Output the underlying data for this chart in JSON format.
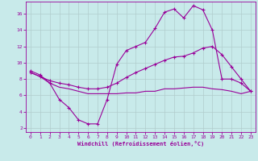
{
  "xlabel": "Windchill (Refroidissement éolien,°C)",
  "background_color": "#c8eaea",
  "grid_color": "#b0cccc",
  "line_color": "#990099",
  "xlim": [
    -0.5,
    23.5
  ],
  "ylim": [
    1.5,
    17.5
  ],
  "xticks": [
    0,
    1,
    2,
    3,
    4,
    5,
    6,
    7,
    8,
    9,
    10,
    11,
    12,
    13,
    14,
    15,
    16,
    17,
    18,
    19,
    20,
    21,
    22,
    23
  ],
  "yticks": [
    2,
    4,
    6,
    8,
    10,
    12,
    14,
    16
  ],
  "line1_x": [
    0,
    1,
    2,
    3,
    4,
    5,
    6,
    7,
    8,
    9,
    10,
    11,
    12,
    13,
    14,
    15,
    16,
    17,
    18,
    19,
    20,
    21,
    22,
    23
  ],
  "line1_y": [
    9.0,
    8.5,
    7.5,
    5.5,
    4.5,
    3.0,
    2.5,
    2.5,
    5.5,
    9.8,
    11.5,
    12.0,
    12.5,
    14.2,
    16.2,
    16.6,
    15.5,
    17.0,
    16.5,
    14.0,
    8.0,
    8.0,
    7.5,
    6.5
  ],
  "line2_x": [
    0,
    1,
    2,
    3,
    4,
    5,
    6,
    7,
    8,
    9,
    10,
    11,
    12,
    13,
    14,
    15,
    16,
    17,
    18,
    19,
    20,
    21,
    22,
    23
  ],
  "line2_y": [
    8.8,
    8.3,
    7.8,
    7.5,
    7.3,
    7.0,
    6.8,
    6.8,
    7.0,
    7.5,
    8.2,
    8.8,
    9.3,
    9.8,
    10.3,
    10.7,
    10.8,
    11.2,
    11.8,
    12.0,
    11.0,
    9.5,
    8.0,
    6.5
  ],
  "line3_x": [
    0,
    1,
    2,
    3,
    4,
    5,
    6,
    7,
    8,
    9,
    10,
    11,
    12,
    13,
    14,
    15,
    16,
    17,
    18,
    19,
    20,
    21,
    22,
    23
  ],
  "line3_y": [
    8.8,
    8.3,
    7.5,
    7.0,
    6.8,
    6.5,
    6.2,
    6.2,
    6.2,
    6.2,
    6.3,
    6.3,
    6.5,
    6.5,
    6.8,
    6.8,
    6.9,
    7.0,
    7.0,
    6.8,
    6.7,
    6.5,
    6.2,
    6.5
  ]
}
